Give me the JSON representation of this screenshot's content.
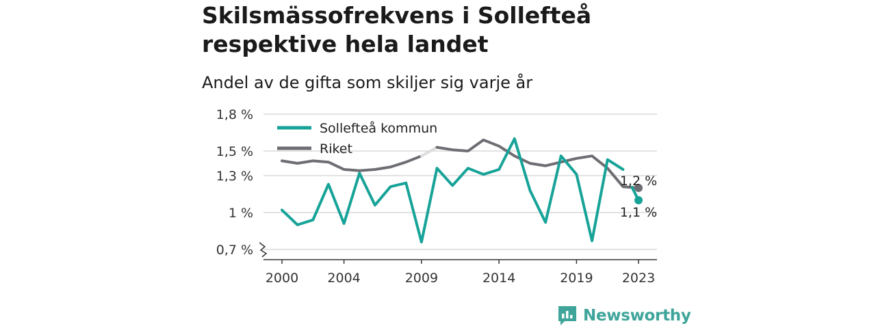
{
  "header": {
    "title": "Skilsmässofrekvens i Sollefteå respektive hela landet",
    "subtitle": "Andel av de gifta som skiljer sig varje år"
  },
  "brand": {
    "name": "Newsworthy"
  },
  "colors": {
    "solleftea": "#17a398",
    "riket": "#6d6d73",
    "riket_gap": "#dcdcdc",
    "grid": "#d9d9d9",
    "axis": "#333333"
  },
  "chart_data": {
    "type": "line",
    "title": "Skilsmässofrekvens i Sollefteå respektive hela landet",
    "subtitle": "Andel av de gifta som skiljer sig varje år",
    "xlabel": "",
    "ylabel": "",
    "ylim": [
      0.7,
      1.8
    ],
    "y_ticks": [
      0.7,
      1.0,
      1.3,
      1.5,
      1.8
    ],
    "y_tick_labels": [
      "0,7 %",
      "1 %",
      "1,3 %",
      "1,5 %",
      "1,8 %"
    ],
    "x_ticks": [
      2000,
      2004,
      2009,
      2014,
      2019,
      2023
    ],
    "x_tick_labels": [
      "2000",
      "2004",
      "2009",
      "2014",
      "2019",
      "2023"
    ],
    "grid": true,
    "legend": "top-left",
    "series": [
      {
        "name": "Sollefteå kommun",
        "x": [
          2000,
          2001,
          2002,
          2003,
          2004,
          2005,
          2006,
          2007,
          2008,
          2009,
          2010,
          2011,
          2012,
          2013,
          2014,
          2015,
          2016,
          2017,
          2018,
          2019,
          2020,
          2021,
          2022,
          2023
        ],
        "values": [
          1.02,
          0.9,
          0.94,
          1.23,
          0.91,
          1.32,
          1.06,
          1.21,
          1.24,
          0.76,
          1.36,
          1.22,
          1.36,
          1.31,
          1.35,
          1.6,
          1.18,
          0.92,
          1.46,
          1.31,
          0.77,
          1.43,
          1.35,
          1.1
        ],
        "end_label": "1,1 %"
      },
      {
        "name": "Riket",
        "x": [
          2000,
          2001,
          2002,
          2003,
          2004,
          2005,
          2006,
          2007,
          2008,
          2009,
          2010,
          2011,
          2012,
          2013,
          2014,
          2015,
          2016,
          2017,
          2018,
          2019,
          2020,
          2021,
          2022,
          2023
        ],
        "values": [
          1.42,
          1.4,
          1.42,
          1.41,
          1.35,
          1.34,
          1.35,
          1.37,
          1.41,
          1.46,
          1.53,
          1.51,
          1.5,
          1.59,
          1.54,
          1.46,
          1.4,
          1.38,
          1.41,
          1.44,
          1.46,
          1.36,
          1.21,
          1.2
        ],
        "end_label": "1,2 %"
      }
    ]
  }
}
